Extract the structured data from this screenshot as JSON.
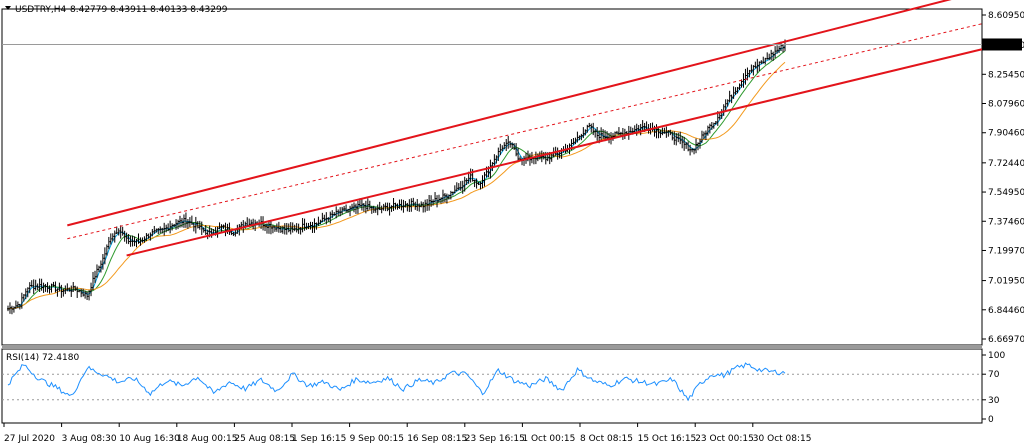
{
  "header": {
    "symbol": "USDTRY,H4",
    "ohlc": "8.42779 8.43911 8.40133 8.43299",
    "menu_icon": "triangle-down-icon"
  },
  "rsi_header": {
    "label": "RSI(14) 72.4180"
  },
  "current_price_label": "8.43299",
  "colors": {
    "background": "#ffffff",
    "candles": "#000000",
    "channel": "#e3141b",
    "midline": "#e3141b",
    "ma_fast": "#00a0e0",
    "ma_mid": "#2e9a2e",
    "ma_slow": "#f39a1e",
    "rsi_line": "#1e90ff",
    "price_tag_bg": "#000000",
    "price_tag_text": "#ffffff"
  },
  "chart_data": [
    {
      "type": "candlestick",
      "symbol": "USDTRY",
      "timeframe": "H4",
      "y_ticks": [
        "8.60950",
        "8.42960",
        "8.25450",
        "8.07960",
        "7.90460",
        "7.72440",
        "7.54950",
        "7.37460",
        "7.19970",
        "7.01950",
        "6.84460",
        "6.66970"
      ],
      "ylim": [
        6.6697,
        8.6095
      ],
      "x_ticks": [
        "27 Jul 2020",
        "3 Aug 08:30",
        "10 Aug 16:30",
        "18 Aug 00:15",
        "25 Aug 08:15",
        "1 Sep 16:15",
        "9 Sep 00:15",
        "16 Sep 08:15",
        "23 Sep 16:15",
        "1 Oct 00:15",
        "8 Oct 08:15",
        "15 Oct 16:15",
        "23 Oct 00:15",
        "30 Oct 08:15"
      ],
      "close_path": [
        [
          0,
          6.85
        ],
        [
          6,
          6.88
        ],
        [
          10,
          6.98
        ],
        [
          16,
          6.99
        ],
        [
          22,
          6.98
        ],
        [
          28,
          6.96
        ],
        [
          34,
          6.97
        ],
        [
          40,
          6.93
        ],
        [
          44,
          7.05
        ],
        [
          48,
          7.15
        ],
        [
          52,
          7.28
        ],
        [
          56,
          7.33
        ],
        [
          60,
          7.26
        ],
        [
          66,
          7.25
        ],
        [
          72,
          7.3
        ],
        [
          78,
          7.32
        ],
        [
          84,
          7.36
        ],
        [
          90,
          7.38
        ],
        [
          96,
          7.34
        ],
        [
          102,
          7.3
        ],
        [
          108,
          7.34
        ],
        [
          114,
          7.31
        ],
        [
          120,
          7.36
        ],
        [
          126,
          7.37
        ],
        [
          132,
          7.35
        ],
        [
          138,
          7.33
        ],
        [
          144,
          7.32
        ],
        [
          150,
          7.35
        ],
        [
          156,
          7.36
        ],
        [
          162,
          7.4
        ],
        [
          168,
          7.43
        ],
        [
          174,
          7.45
        ],
        [
          180,
          7.47
        ],
        [
          186,
          7.44
        ],
        [
          192,
          7.46
        ],
        [
          198,
          7.47
        ],
        [
          204,
          7.48
        ],
        [
          210,
          7.47
        ],
        [
          216,
          7.5
        ],
        [
          222,
          7.53
        ],
        [
          228,
          7.58
        ],
        [
          234,
          7.64
        ],
        [
          238,
          7.6
        ],
        [
          242,
          7.66
        ],
        [
          246,
          7.75
        ],
        [
          250,
          7.82
        ],
        [
          254,
          7.84
        ],
        [
          258,
          7.76
        ],
        [
          262,
          7.74
        ],
        [
          266,
          7.76
        ],
        [
          272,
          7.75
        ],
        [
          278,
          7.78
        ],
        [
          284,
          7.82
        ],
        [
          290,
          7.9
        ],
        [
          294,
          7.94
        ],
        [
          298,
          7.89
        ],
        [
          304,
          7.88
        ],
        [
          310,
          7.9
        ],
        [
          316,
          7.92
        ],
        [
          322,
          7.94
        ],
        [
          328,
          7.92
        ],
        [
          334,
          7.9
        ],
        [
          340,
          7.85
        ],
        [
          346,
          7.8
        ],
        [
          350,
          7.86
        ],
        [
          354,
          7.93
        ],
        [
          358,
          7.98
        ],
        [
          362,
          8.06
        ],
        [
          366,
          8.13
        ],
        [
          370,
          8.2
        ],
        [
          374,
          8.27
        ],
        [
          378,
          8.3
        ],
        [
          382,
          8.33
        ],
        [
          386,
          8.37
        ],
        [
          390,
          8.41
        ],
        [
          393,
          8.43299
        ]
      ],
      "moving_averages": [
        "fast",
        "mid",
        "slow"
      ],
      "regression_channel": {
        "upper": {
          "x0": 30,
          "y0": 7.35,
          "x1": 393,
          "y1": 8.45
        },
        "middle": {
          "x0": 30,
          "y0": 7.27,
          "x1": 393,
          "y1": 8.28
        },
        "lower": {
          "x0": 60,
          "y0": 7.17,
          "x1": 393,
          "y1": 8.12
        }
      }
    },
    {
      "type": "line",
      "name": "RSI(14)",
      "y_ticks": [
        "100",
        "70",
        "30",
        "0"
      ],
      "ylim": [
        0,
        100
      ],
      "levels": [
        70,
        30
      ],
      "last_value": 72.418,
      "x": [
        0,
        8,
        16,
        24,
        32,
        40,
        48,
        56,
        64,
        72,
        80,
        88,
        96,
        104,
        112,
        120,
        128,
        136,
        144,
        152,
        160,
        168,
        176,
        184,
        192,
        200,
        208,
        216,
        224,
        232,
        240,
        248,
        256,
        264,
        272,
        280,
        288,
        296,
        304,
        312,
        320,
        328,
        336,
        344,
        350,
        356,
        362,
        368,
        374,
        380,
        386,
        393
      ],
      "values": [
        55,
        85,
        62,
        50,
        35,
        80,
        70,
        58,
        63,
        40,
        60,
        52,
        66,
        40,
        58,
        47,
        61,
        44,
        70,
        52,
        58,
        45,
        62,
        57,
        64,
        47,
        61,
        56,
        72,
        70,
        40,
        76,
        60,
        52,
        63,
        45,
        77,
        60,
        52,
        63,
        58,
        54,
        62,
        30,
        55,
        70,
        68,
        79,
        85,
        77,
        74,
        72.418
      ]
    }
  ]
}
